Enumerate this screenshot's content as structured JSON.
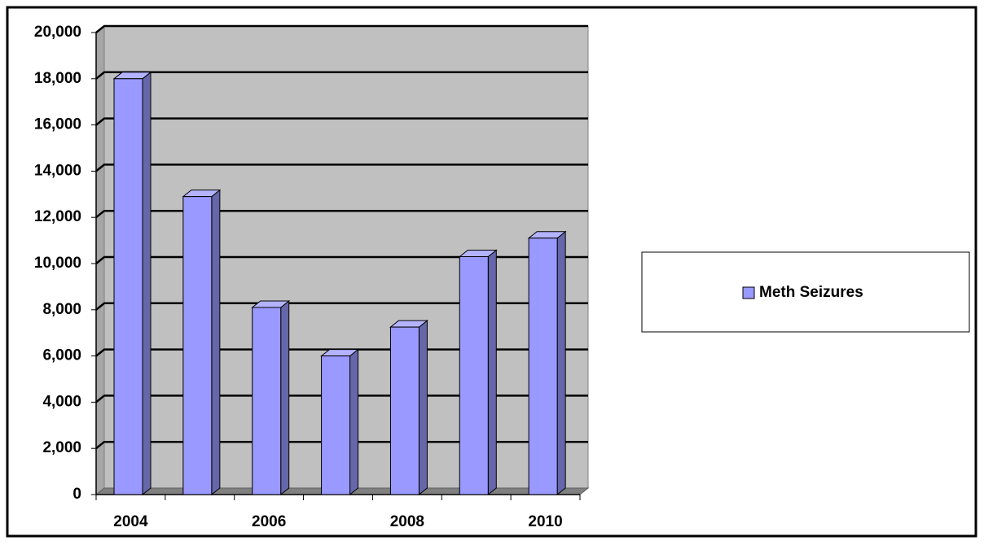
{
  "chart_data": {
    "type": "bar3d",
    "categories": [
      "2004",
      null,
      "2006",
      null,
      "2008",
      null,
      "2010"
    ],
    "series": [
      {
        "name": "Meth Seizures",
        "color": "#9999ff",
        "values": [
          18000,
          12900,
          8100,
          6000,
          7250,
          10300,
          11100
        ]
      }
    ],
    "ylim": [
      0,
      20000
    ],
    "yticks": [
      0,
      {
        "value": 2000,
        "label": "2,000"
      },
      {
        "value": 4000,
        "label": "4,000"
      },
      {
        "value": 6000,
        "label": "6,000"
      },
      {
        "value": 8000,
        "label": "8,000"
      },
      {
        "value": 10000,
        "label": "10,000"
      },
      {
        "value": 12000,
        "label": "12,000"
      },
      {
        "value": 14000,
        "label": "14,000"
      },
      {
        "value": 16000,
        "label": "16,000"
      },
      {
        "value": 18000,
        "label": "18,000"
      },
      {
        "value": 20000,
        "label": "20,000"
      }
    ],
    "grid": true,
    "legend": "right"
  }
}
